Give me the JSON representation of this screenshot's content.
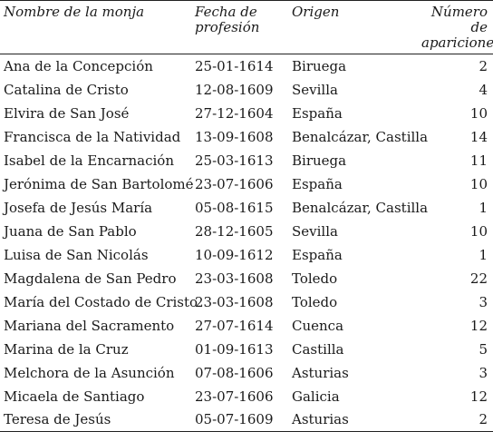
{
  "table": {
    "headers": {
      "name": "Nombre de la monja",
      "date": "Fecha de profesión",
      "origin": "Origen",
      "count": "Número de apariciones"
    },
    "rows": [
      {
        "name": "Ana de la Concepción",
        "date": "25-01-1614",
        "origin": "Biruega",
        "count": "2"
      },
      {
        "name": "Catalina de Cristo",
        "date": "12-08-1609",
        "origin": "Sevilla",
        "count": "4"
      },
      {
        "name": "Elvira de San José",
        "date": "27-12-1604",
        "origin": "España",
        "count": "10"
      },
      {
        "name": "Francisca de la Natividad",
        "date": "13-09-1608",
        "origin": "Benalcázar, Castilla",
        "count": "14"
      },
      {
        "name": "Isabel de la Encarnación",
        "date": "25-03-1613",
        "origin": "Biruega",
        "count": "11"
      },
      {
        "name": "Jerónima de San Bartolomé",
        "date": "23-07-1606",
        "origin": "España",
        "count": "10"
      },
      {
        "name": "Josefa de Jesús María",
        "date": "05-08-1615",
        "origin": "Benalcázar, Castilla",
        "count": "1"
      },
      {
        "name": "Juana de San Pablo",
        "date": "28-12-1605",
        "origin": "Sevilla",
        "count": "10"
      },
      {
        "name": "Luisa de San Nicolás",
        "date": "10-09-1612",
        "origin": "España",
        "count": "1"
      },
      {
        "name": "Magdalena de San Pedro",
        "date": "23-03-1608",
        "origin": "Toledo",
        "count": "22"
      },
      {
        "name": "María del Costado de Cristo",
        "date": "23-03-1608",
        "origin": "Toledo",
        "count": "3"
      },
      {
        "name": "Mariana del Sacramento",
        "date": "27-07-1614",
        "origin": "Cuenca",
        "count": "12"
      },
      {
        "name": "Marina de la Cruz",
        "date": "01-09-1613",
        "origin": "Castilla",
        "count": "5"
      },
      {
        "name": "Melchora de la Asunción",
        "date": "07-08-1606",
        "origin": "Asturias",
        "count": "3"
      },
      {
        "name": "Micaela de Santiago",
        "date": "23-07-1606",
        "origin": "Galicia",
        "count": "12"
      },
      {
        "name": "Teresa de Jesús",
        "date": "05-07-1609",
        "origin": "Asturias",
        "count": "2"
      }
    ]
  }
}
